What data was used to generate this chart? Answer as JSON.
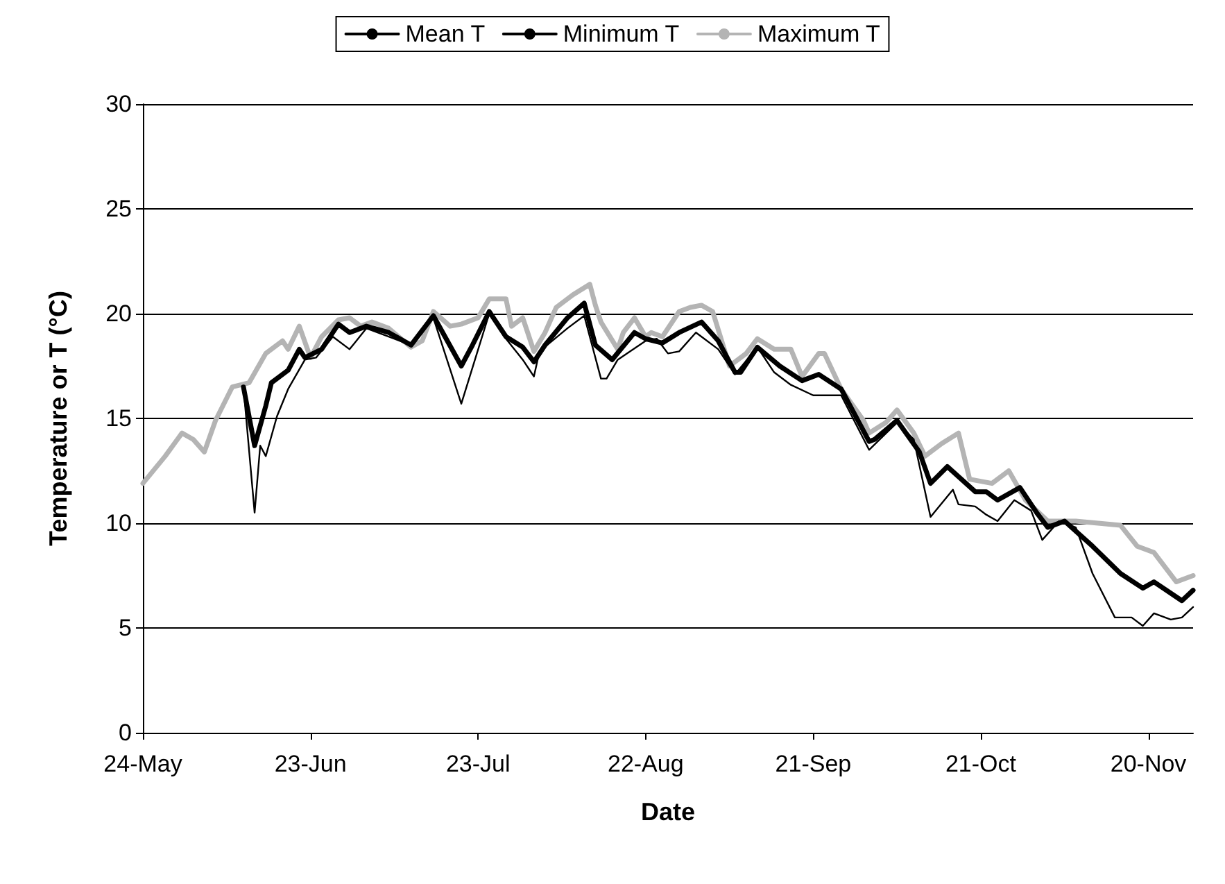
{
  "chart_data": {
    "type": "line",
    "xlabel": "Date",
    "ylabel": "Temperature or T (°C)",
    "xlim": [
      "--05-24",
      "--11-28"
    ],
    "xticks": [
      {
        "value": "--05-24",
        "label": "24-May"
      },
      {
        "value": "--06-23",
        "label": "23-Jun"
      },
      {
        "value": "--07-23",
        "label": "23-Jul"
      },
      {
        "value": "--08-22",
        "label": "22-Aug"
      },
      {
        "value": "--09-21",
        "label": "21-Sep"
      },
      {
        "value": "--10-21",
        "label": "21-Oct"
      },
      {
        "value": "--11-20",
        "label": "20-Nov"
      }
    ],
    "ylim": [
      0,
      30
    ],
    "yticks": [
      0,
      5,
      10,
      15,
      20,
      25,
      30
    ],
    "grid": "y",
    "legend": "top",
    "marker": "none",
    "line_style": "solid",
    "series": [
      {
        "name": "Mean T",
        "color": "#000000",
        "x": [
          "--06-11",
          "--06-13",
          "--06-15",
          "--06-16",
          "--06-19",
          "--06-21",
          "--06-22",
          "--06-25",
          "--06-28",
          "--06-30",
          "--07-03",
          "--07-07",
          "--07-11",
          "--07-15",
          "--07-20",
          "--07-22",
          "--07-25",
          "--07-28",
          "--07-31",
          "--08-02",
          "--08-04",
          "--08-08",
          "--08-11",
          "--08-13",
          "--08-16",
          "--08-20",
          "--08-22",
          "--08-25",
          "--08-28",
          "--09-01",
          "--09-04",
          "--09-07",
          "--09-08",
          "--09-11",
          "--09-15",
          "--09-19",
          "--09-22",
          "--09-26",
          "--10-01",
          "--10-02",
          "--10-06",
          "--10-10",
          "--10-12",
          "--10-15",
          "--10-20",
          "--10-22",
          "--10-24",
          "--10-28",
          "--10-31",
          "--11-02",
          "--11-05",
          "--11-10",
          "--11-15",
          "--11-19",
          "--11-21",
          "--11-26",
          "--11-28"
        ],
        "values": [
          16.5,
          13.7,
          15.6,
          16.7,
          17.3,
          18.3,
          17.9,
          18.3,
          19.5,
          19.1,
          19.4,
          19.1,
          18.5,
          19.9,
          17.5,
          18.5,
          20.1,
          18.9,
          18.4,
          17.7,
          18.5,
          19.8,
          20.5,
          18.5,
          17.8,
          19.1,
          18.8,
          18.6,
          19.1,
          19.6,
          18.7,
          17.2,
          17.2,
          18.4,
          17.5,
          16.8,
          17.1,
          16.4,
          13.9,
          14.0,
          14.9,
          13.4,
          11.9,
          12.7,
          11.5,
          11.5,
          11.1,
          11.7,
          10.5,
          9.8,
          10.1,
          8.9,
          7.6,
          6.9,
          7.2,
          6.3,
          6.8
        ]
      },
      {
        "name": "Minimum T",
        "color": "#000000",
        "x": [
          "--06-11",
          "--06-13",
          "--06-14",
          "--06-15",
          "--06-17",
          "--06-19",
          "--06-22",
          "--06-24",
          "--06-27",
          "--06-30",
          "--07-03",
          "--07-07",
          "--07-11",
          "--07-15",
          "--07-20",
          "--07-25",
          "--07-28",
          "--07-31",
          "--08-02",
          "--08-03",
          "--08-08",
          "--08-11",
          "--08-14",
          "--08-15",
          "--08-17",
          "--08-22",
          "--08-24",
          "--08-26",
          "--08-28",
          "--08-31",
          "--09-04",
          "--09-07",
          "--09-11",
          "--09-14",
          "--09-17",
          "--09-21",
          "--09-26",
          "--10-01",
          "--10-06",
          "--10-09",
          "--10-12",
          "--10-16",
          "--10-17",
          "--10-20",
          "--10-22",
          "--10-24",
          "--10-27",
          "--10-30",
          "--11-01",
          "--11-04",
          "--11-07",
          "--11-10",
          "--11-14",
          "--11-17",
          "--11-19",
          "--11-21",
          "--11-24",
          "--11-26",
          "--11-28"
        ],
        "values": [
          16.5,
          10.5,
          13.7,
          13.2,
          15.1,
          16.4,
          17.8,
          17.9,
          18.9,
          18.3,
          19.3,
          18.9,
          18.5,
          19.8,
          15.7,
          20.0,
          18.8,
          17.8,
          17.0,
          18.2,
          19.3,
          19.9,
          16.9,
          16.9,
          17.8,
          18.7,
          18.8,
          18.1,
          18.2,
          19.1,
          18.3,
          17.1,
          18.4,
          17.2,
          16.6,
          16.1,
          16.1,
          13.5,
          14.8,
          14.0,
          10.3,
          11.6,
          10.9,
          10.8,
          10.4,
          10.1,
          11.1,
          10.6,
          9.2,
          10.1,
          9.8,
          7.6,
          5.5,
          5.5,
          5.1,
          5.7,
          5.4,
          5.5,
          6.0
        ]
      },
      {
        "name": "Maximum T",
        "color": "#b4b4b4",
        "x": [
          "--05-24",
          "--05-28",
          "--05-31",
          "--06-02",
          "--06-04",
          "--06-06",
          "--06-09",
          "--06-12",
          "--06-15",
          "--06-18",
          "--06-19",
          "--06-21",
          "--06-23",
          "--06-25",
          "--06-28",
          "--06-30",
          "--07-02",
          "--07-04",
          "--07-07",
          "--07-11",
          "--07-13",
          "--07-15",
          "--07-18",
          "--07-20",
          "--07-23",
          "--07-25",
          "--07-28",
          "--07-29",
          "--07-31",
          "--08-02",
          "--08-04",
          "--08-06",
          "--08-09",
          "--08-12",
          "--08-13",
          "--08-14",
          "--08-17",
          "--08-18",
          "--08-20",
          "--08-22",
          "--08-23",
          "--08-25",
          "--08-28",
          "--08-30",
          "--09-01",
          "--09-03",
          "--09-06",
          "--09-09",
          "--09-11",
          "--09-14",
          "--09-17",
          "--09-19",
          "--09-22",
          "--09-23",
          "--09-26",
          "--09-30",
          "--10-01",
          "--10-04",
          "--10-06",
          "--10-09",
          "--10-11",
          "--10-14",
          "--10-17",
          "--10-19",
          "--10-23",
          "--10-26",
          "--10-29",
          "--11-02",
          "--11-07",
          "--11-15",
          "--11-18",
          "--11-21",
          "--11-25",
          "--11-28"
        ],
        "values": [
          11.9,
          13.2,
          14.3,
          14.0,
          13.4,
          14.9,
          16.5,
          16.7,
          18.1,
          18.7,
          18.3,
          19.4,
          17.9,
          18.9,
          19.7,
          19.8,
          19.4,
          19.6,
          19.3,
          18.4,
          18.7,
          20.1,
          19.4,
          19.5,
          19.8,
          20.7,
          20.7,
          19.4,
          19.8,
          18.2,
          19.1,
          20.3,
          20.9,
          21.4,
          20.4,
          19.6,
          18.3,
          19.1,
          19.8,
          18.9,
          19.1,
          18.9,
          20.1,
          20.3,
          20.4,
          20.1,
          17.5,
          18.1,
          18.8,
          18.3,
          18.3,
          17.0,
          18.1,
          18.1,
          16.4,
          14.9,
          14.3,
          14.8,
          15.4,
          14.3,
          13.2,
          13.8,
          14.3,
          12.1,
          11.9,
          12.5,
          11.1,
          10.1,
          10.1,
          9.9,
          8.9,
          8.6,
          7.2,
          7.5
        ]
      }
    ]
  }
}
